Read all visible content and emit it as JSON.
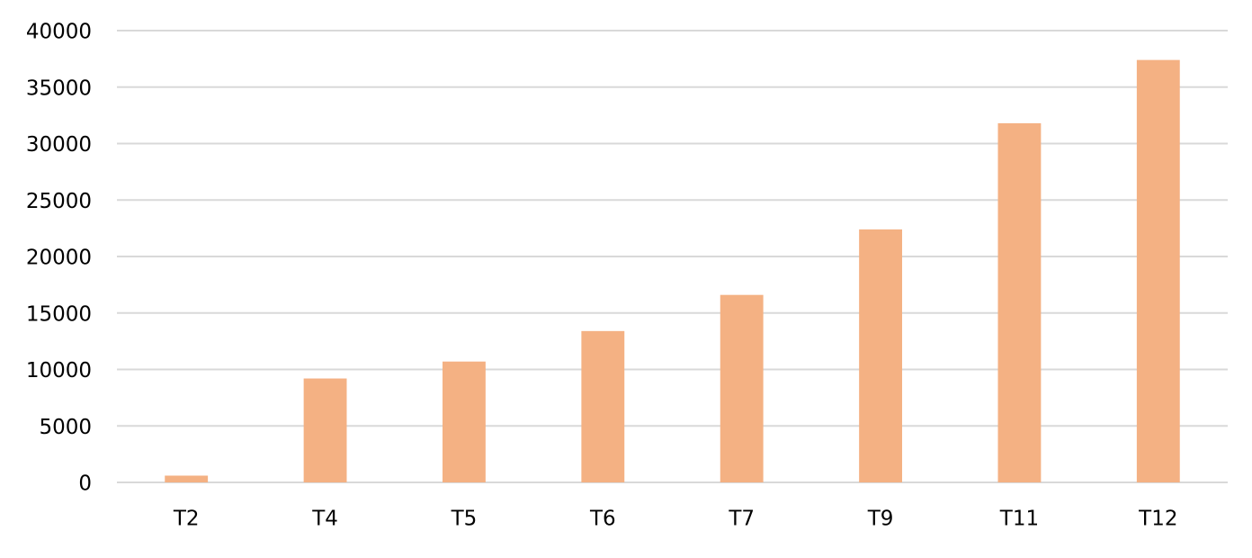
{
  "chart_data": {
    "type": "bar",
    "categories": [
      "T2",
      "T4",
      "T5",
      "T6",
      "T7",
      "T9",
      "T11",
      "T12"
    ],
    "values": [
      600,
      9200,
      10700,
      13400,
      16600,
      22400,
      31800,
      37400
    ],
    "color": "#f4b183",
    "ylim": [
      0,
      40000
    ],
    "yticks": [
      0,
      5000,
      10000,
      15000,
      20000,
      25000,
      30000,
      35000,
      40000
    ],
    "grid": true
  }
}
